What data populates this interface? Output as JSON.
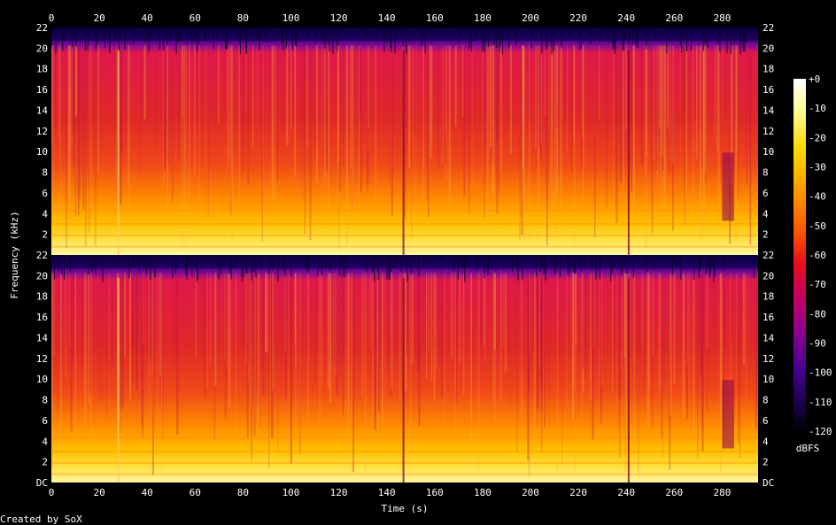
{
  "chart_data": {
    "type": "heatmap",
    "subtype": "spectrogram",
    "channels": 2,
    "xlabel": "Time (s)",
    "ylabel": "Frequency (kHz)",
    "xlim": [
      0,
      295
    ],
    "ylim_khz": [
      0,
      22
    ],
    "x_ticks": [
      "0",
      "20",
      "40",
      "60",
      "80",
      "100",
      "120",
      "140",
      "160",
      "180",
      "200",
      "220",
      "240",
      "260",
      "280"
    ],
    "y_ticks": [
      "DC",
      "2",
      "4",
      "6",
      "8",
      "10",
      "12",
      "14",
      "16",
      "18",
      "20",
      "22"
    ],
    "colorbar": {
      "label": "dBFS",
      "range": [
        -120,
        0
      ],
      "ticks": [
        "+0",
        "-10",
        "-20",
        "-30",
        "-40",
        "-50",
        "-60",
        "-70",
        "-80",
        "-90",
        "-100",
        "-110",
        "-120"
      ],
      "colors": [
        "#000000",
        "#1a0050",
        "#4a0090",
        "#8a0090",
        "#c40060",
        "#e8101a",
        "#ff5000",
        "#ff9a00",
        "#ffd800",
        "#ffffa0",
        "#ffffff"
      ]
    },
    "footer": "Created by SoX",
    "notable_events_s": [
      28,
      147,
      241
    ],
    "fade_out_start_s": 280
  }
}
